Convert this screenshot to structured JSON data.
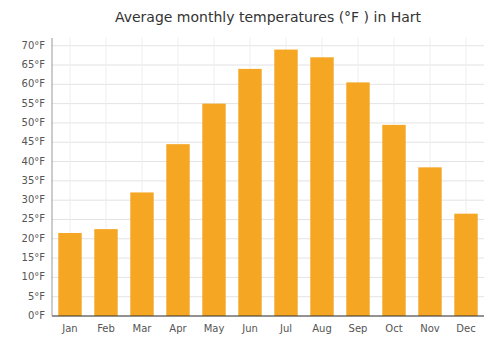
{
  "chart_data": {
    "type": "bar",
    "title": "Average monthly temperatures (°F ) in Hart",
    "categories": [
      "Jan",
      "Feb",
      "Mar",
      "Apr",
      "May",
      "Jun",
      "Jul",
      "Aug",
      "Sep",
      "Oct",
      "Nov",
      "Dec"
    ],
    "values": [
      21.5,
      22.5,
      32.0,
      44.5,
      55.0,
      64.0,
      69.0,
      67.0,
      60.5,
      49.5,
      38.5,
      26.5
    ],
    "color": "#F5A623",
    "ylim": [
      0,
      72
    ],
    "yticks": [
      {
        "value": 0,
        "label": "0°F"
      },
      {
        "value": 5,
        "label": "5°F"
      },
      {
        "value": 10,
        "label": "10°F"
      },
      {
        "value": 15,
        "label": "15°F"
      },
      {
        "value": 20,
        "label": "20°F"
      },
      {
        "value": 25,
        "label": "25°F"
      },
      {
        "value": 30,
        "label": "30°F"
      },
      {
        "value": 35,
        "label": "35°F"
      },
      {
        "value": 40,
        "label": "40°F"
      },
      {
        "value": 45,
        "label": "45°F"
      },
      {
        "value": 50,
        "label": "50°F"
      },
      {
        "value": 55,
        "label": "55°F"
      },
      {
        "value": 60,
        "label": "60°F"
      },
      {
        "value": 65,
        "label": "65°F"
      },
      {
        "value": 70,
        "label": "70°F"
      }
    ],
    "grid": true
  }
}
